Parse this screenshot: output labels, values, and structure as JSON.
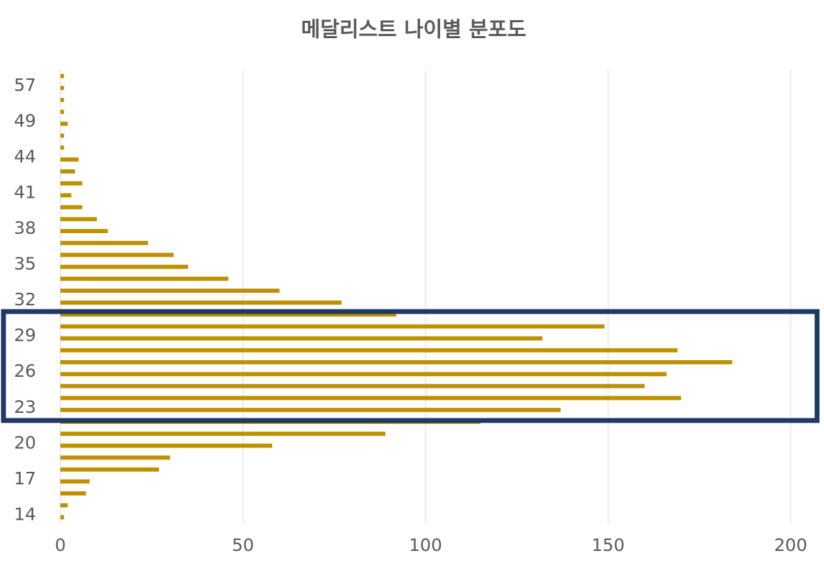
{
  "chart_data": {
    "type": "barh",
    "title": "메달리스트 나이별 분포도",
    "categories": [
      "14",
      null,
      null,
      "17",
      null,
      null,
      "20",
      null,
      null,
      "23",
      null,
      null,
      "26",
      null,
      null,
      "29",
      null,
      null,
      "32",
      null,
      null,
      "35",
      null,
      null,
      "38",
      null,
      null,
      "41",
      null,
      null,
      "44",
      null,
      null,
      "49",
      null,
      null,
      "57",
      null
    ],
    "values": [
      1,
      2,
      7,
      8,
      27,
      30,
      58,
      89,
      115,
      137,
      170,
      160,
      166,
      184,
      169,
      132,
      149,
      92,
      77,
      60,
      46,
      35,
      31,
      24,
      13,
      10,
      6,
      3,
      6,
      4,
      5,
      1,
      1,
      2,
      1,
      1,
      1,
      1
    ],
    "color": "#bf9000",
    "xlim": [
      0,
      200
    ],
    "xticks": [
      0,
      50,
      100,
      150,
      200
    ],
    "grid": true
  }
}
